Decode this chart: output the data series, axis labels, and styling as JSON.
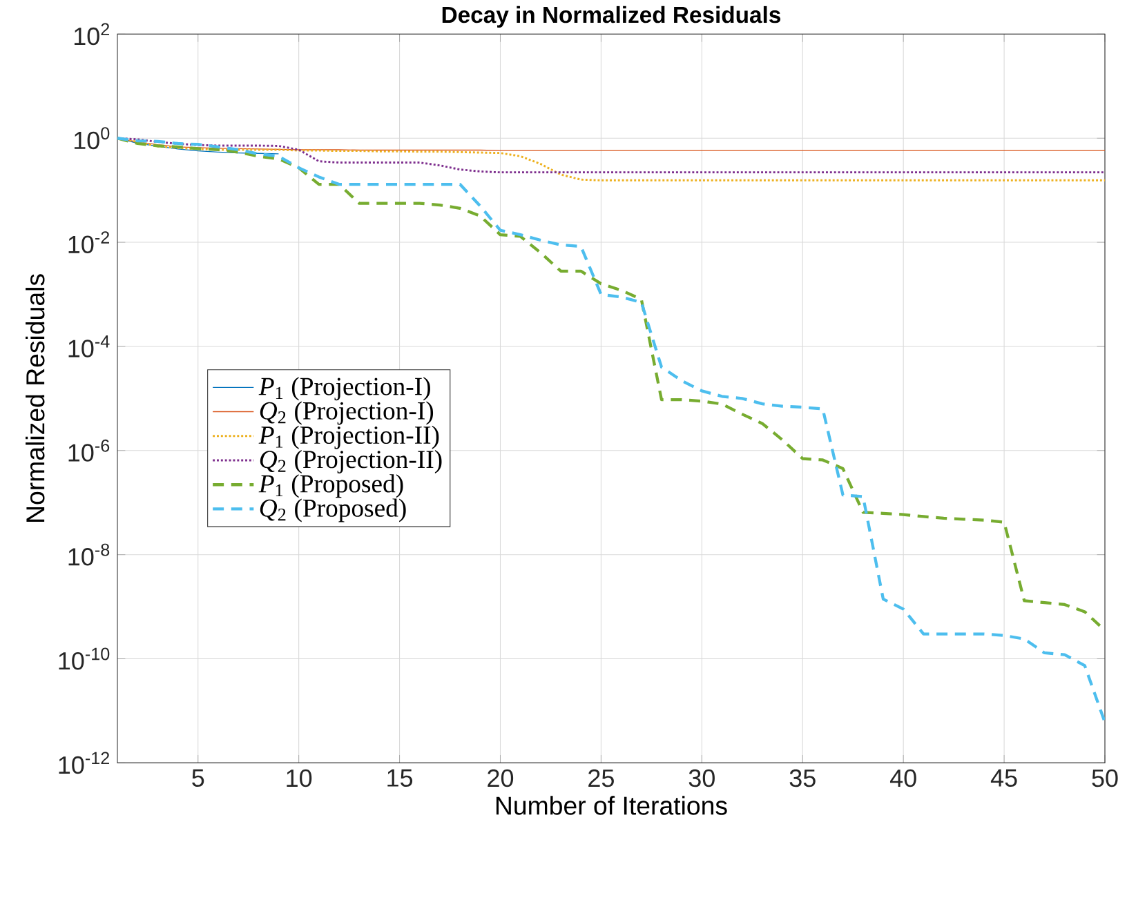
{
  "chart_data": {
    "type": "line",
    "title": "Decay in Normalized Residuals",
    "xlabel": "Number of Iterations",
    "ylabel": "Normalized Residuals",
    "x": [
      1,
      2,
      3,
      4,
      5,
      6,
      7,
      8,
      9,
      10,
      11,
      12,
      13,
      14,
      15,
      16,
      17,
      18,
      19,
      20,
      21,
      22,
      23,
      24,
      25,
      26,
      27,
      28,
      29,
      30,
      31,
      32,
      33,
      34,
      35,
      36,
      37,
      38,
      39,
      40,
      41,
      42,
      43,
      44,
      45,
      46,
      47,
      48,
      49,
      50
    ],
    "series": [
      {
        "name": "*P*$_{1}$ (Projection-I)",
        "color": "#0072bd",
        "line_style": "solid",
        "values": [
          1,
          0.8,
          0.7,
          0.62,
          0.57,
          0.54,
          0.52,
          0.51,
          0.5,
          null,
          null,
          null,
          null,
          null,
          null,
          null,
          null,
          null,
          null,
          null,
          null,
          null,
          null,
          null,
          null,
          null,
          null,
          null,
          null,
          null,
          null,
          null,
          null,
          null,
          null,
          null,
          null,
          null,
          null,
          null,
          null,
          null,
          null,
          null,
          null,
          null,
          null,
          null,
          null,
          null
        ]
      },
      {
        "name": "*Q*$_{2}$ (Projection-I)",
        "color": "#d95319",
        "line_style": "solid",
        "values": [
          1,
          0.85,
          0.75,
          0.68,
          0.66,
          0.64,
          0.63,
          0.62,
          0.61,
          0.6,
          0.6,
          0.6,
          0.59,
          0.59,
          0.59,
          0.59,
          0.59,
          0.59,
          0.59,
          0.58,
          0.58,
          0.58,
          0.58,
          0.58,
          0.58,
          0.58,
          0.58,
          0.58,
          0.58,
          0.58,
          0.58,
          0.58,
          0.58,
          0.58,
          0.58,
          0.58,
          0.58,
          0.58,
          0.58,
          0.58,
          0.58,
          0.58,
          0.58,
          0.58,
          0.58,
          0.58,
          0.58,
          0.58,
          0.58,
          0.58
        ]
      },
      {
        "name": "*P*$_{1}$ (Projection-II)",
        "color": "#edb120",
        "line_style": "dotted",
        "values": [
          1,
          0.85,
          0.7,
          0.65,
          0.62,
          0.6,
          0.6,
          0.6,
          0.6,
          0.58,
          0.58,
          0.57,
          0.57,
          0.56,
          0.56,
          0.55,
          0.55,
          0.54,
          0.53,
          0.52,
          0.45,
          0.32,
          0.2,
          0.16,
          0.155,
          0.155,
          0.155,
          0.155,
          0.155,
          0.155,
          0.155,
          0.155,
          0.155,
          0.155,
          0.155,
          0.155,
          0.155,
          0.155,
          0.155,
          0.155,
          0.155,
          0.155,
          0.155,
          0.155,
          0.155,
          0.155,
          0.155,
          0.155,
          0.155,
          0.155
        ]
      },
      {
        "name": "*Q*$_{2}$ (Projection-II)",
        "color": "#7e2f8e",
        "line_style": "dotted",
        "values": [
          1,
          0.95,
          0.85,
          0.78,
          0.74,
          0.72,
          0.72,
          0.72,
          0.71,
          0.6,
          0.36,
          0.34,
          0.34,
          0.34,
          0.34,
          0.34,
          0.3,
          0.25,
          0.23,
          0.22,
          0.22,
          0.22,
          0.22,
          0.22,
          0.22,
          0.22,
          0.22,
          0.22,
          0.22,
          0.22,
          0.22,
          0.22,
          0.22,
          0.22,
          0.22,
          0.22,
          0.22,
          0.22,
          0.22,
          0.22,
          0.22,
          0.22,
          0.22,
          0.22,
          0.22,
          0.22,
          0.22,
          0.22,
          0.22,
          0.22
        ]
      },
      {
        "name": "*P*$_{1}$ (Proposed)",
        "color": "#77ac30",
        "line_style": "dashed",
        "values": [
          1,
          0.79,
          0.71,
          0.68,
          0.63,
          0.6,
          0.54,
          0.45,
          0.4,
          0.27,
          0.13,
          0.13,
          0.056,
          0.056,
          0.056,
          0.056,
          0.052,
          0.045,
          0.032,
          0.014,
          0.013,
          0.0063,
          0.0028,
          0.0028,
          0.0016,
          0.0012,
          0.0008,
          9.5e-06,
          9.5e-06,
          8.9e-06,
          7.8e-06,
          5e-06,
          3.3e-06,
          1.6e-06,
          7e-07,
          6.6e-07,
          4.5e-07,
          6.5e-08,
          6.2e-08,
          5.9e-08,
          5.4e-08,
          5e-08,
          4.8e-08,
          4.6e-08,
          4.2e-08,
          1.3e-09,
          1.2e-09,
          1.1e-09,
          8e-10,
          3.5e-10
        ]
      },
      {
        "name": "*Q*$_{2}$ (Proposed)",
        "color": "#4dbeee",
        "line_style": "dashed",
        "values": [
          1,
          0.89,
          0.87,
          0.79,
          0.76,
          0.68,
          0.6,
          0.5,
          0.45,
          0.27,
          0.18,
          0.13,
          0.13,
          0.13,
          0.13,
          0.13,
          0.13,
          0.13,
          0.05,
          0.017,
          0.014,
          0.011,
          0.0089,
          0.0083,
          0.001,
          0.00089,
          0.0007,
          4e-05,
          2.2e-05,
          1.4e-05,
          1.1e-05,
          1e-05,
          7.9e-06,
          7.1e-06,
          6.8e-06,
          6.3e-06,
          1.4e-07,
          1.3e-07,
          1.4e-09,
          9e-10,
          3e-10,
          3e-10,
          3e-10,
          3e-10,
          2.8e-10,
          2.4e-10,
          1.3e-10,
          1.2e-10,
          7.4e-11,
          6e-12
        ]
      }
    ],
    "xlim": [
      1,
      50
    ],
    "xticks": [
      5,
      10,
      15,
      20,
      25,
      30,
      35,
      40,
      45,
      50
    ],
    "ylim": [
      1e-12,
      100
    ],
    "yticks": [
      {
        "value": 1e-12,
        "label": "10$^{-12}$"
      },
      {
        "value": 1e-10,
        "label": "10$^{-10}$"
      },
      {
        "value": 1e-08,
        "label": "10$^{-8}$"
      },
      {
        "value": 1e-06,
        "label": "10$^{-6}$"
      },
      {
        "value": 0.0001,
        "label": "10$^{-4}$"
      },
      {
        "value": 0.01,
        "label": "10$^{-2}$"
      },
      {
        "value": 1,
        "label": "10$^{0}$"
      },
      {
        "value": 100,
        "label": "10$^{2}$"
      }
    ],
    "log": "y",
    "grid": true,
    "legend": "left",
    "marker": "none"
  }
}
